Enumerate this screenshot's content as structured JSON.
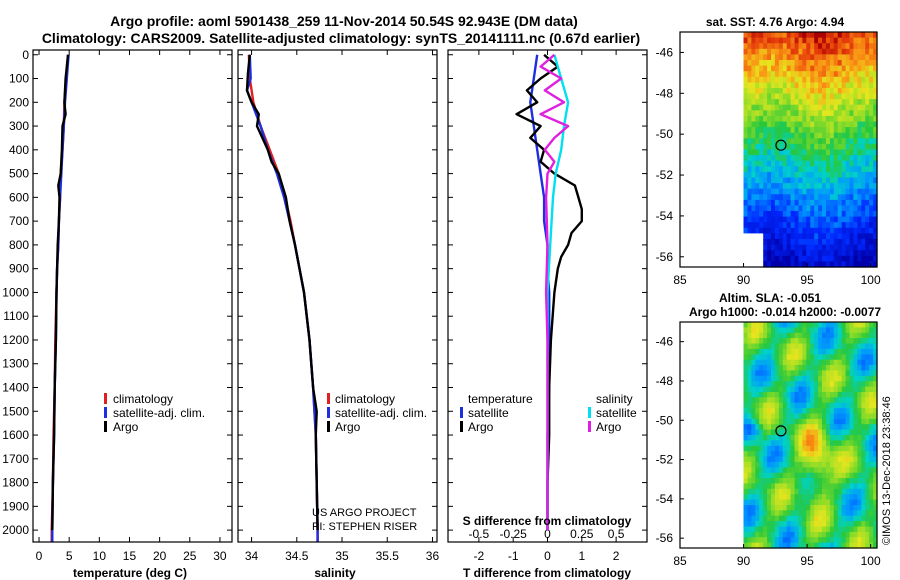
{
  "title_line1": "Argo profile: aoml 5901438_259 11-Nov-2014 50.54S 92.943E (DM data)",
  "title_line2": "Climatology: CARS2009. Satellite-adjusted climatology: synTS_20141111.nc (0.67d earlier)",
  "depth_ticks": [
    "0",
    "100",
    "200",
    "300",
    "400",
    "500",
    "600",
    "700",
    "800",
    "900",
    "1000",
    "1100",
    "1200",
    "1300",
    "1400",
    "1500",
    "1600",
    "1700",
    "1800",
    "1900",
    "2000"
  ],
  "colors": {
    "climatology": "#e02020",
    "satellite": "#1c2ee0",
    "argo": "#000000",
    "satellite_s": "#00e0f0",
    "argo_s": "#e020e0"
  },
  "chart_data": [
    {
      "type": "line",
      "name": "temperature-panel",
      "xlabel": "temperature (deg C)",
      "xlim": [
        -1,
        32
      ],
      "ylim": [
        2050,
        -20
      ],
      "xticks": [
        "0",
        "5",
        "10",
        "15",
        "20",
        "25",
        "30"
      ],
      "legend": [
        "climatology",
        "satellite-adj. clim.",
        "Argo"
      ],
      "series": [
        {
          "name": "climatology",
          "depth": [
            0,
            100,
            200,
            300,
            400,
            500,
            600,
            700,
            800,
            900,
            1000,
            1200,
            1400,
            1600,
            1800,
            2000,
            2050
          ],
          "values": [
            4.8,
            4.5,
            4.2,
            4.1,
            3.9,
            3.6,
            3.5,
            3.3,
            3.2,
            3.0,
            2.9,
            2.7,
            2.6,
            2.4,
            2.3,
            2.1,
            2.1
          ]
        },
        {
          "name": "satellite-adj. clim.",
          "depth": [
            0,
            100,
            200,
            300,
            400,
            500,
            600,
            700,
            800,
            900,
            1000,
            1200,
            1400,
            1600,
            1800,
            2000,
            2050
          ],
          "values": [
            4.9,
            4.6,
            4.3,
            4.1,
            3.9,
            3.7,
            3.5,
            3.3,
            3.2,
            3.0,
            2.9,
            2.8,
            2.6,
            2.5,
            2.3,
            2.2,
            2.2
          ]
        },
        {
          "name": "Argo",
          "depth": [
            0,
            50,
            100,
            200,
            250,
            300,
            400,
            500,
            550,
            600,
            700,
            800,
            900,
            1000,
            1200,
            1400,
            1600,
            1800,
            2000
          ],
          "values": [
            4.8,
            4.6,
            4.4,
            4.2,
            4.4,
            3.9,
            3.8,
            3.6,
            3.2,
            3.4,
            3.3,
            3.1,
            3.0,
            2.9,
            2.8,
            2.6,
            2.5,
            2.3,
            2.2
          ]
        }
      ],
      "annotations": []
    },
    {
      "type": "line",
      "name": "salinity-panel",
      "xlabel": "salinity",
      "xlim": [
        33.85,
        36.05
      ],
      "ylim": [
        2050,
        -20
      ],
      "xticks": [
        "34",
        "34.5",
        "35",
        "35.5",
        "36"
      ],
      "legend": [
        "climatology",
        "satellite-adj. clim.",
        "Argo"
      ],
      "series": [
        {
          "name": "climatology",
          "depth": [
            0,
            100,
            200,
            300,
            400,
            500,
            600,
            700,
            800,
            900,
            1000,
            1200,
            1400,
            1600,
            1800,
            2000,
            2050
          ],
          "values": [
            33.97,
            33.98,
            34.02,
            34.1,
            34.2,
            34.3,
            34.37,
            34.43,
            34.48,
            34.53,
            34.58,
            34.64,
            34.68,
            34.71,
            34.72,
            34.73,
            34.73
          ]
        },
        {
          "name": "satellite-adj. clim.",
          "depth": [
            0,
            100,
            150,
            200,
            300,
            400,
            500,
            600,
            700,
            800,
            900,
            1000,
            1200,
            1400,
            1600,
            1800,
            2000,
            2050
          ],
          "values": [
            33.98,
            33.99,
            33.95,
            34.0,
            34.1,
            34.18,
            34.28,
            34.36,
            34.42,
            34.48,
            34.53,
            34.58,
            34.64,
            34.68,
            34.71,
            34.72,
            34.73,
            34.73
          ]
        },
        {
          "name": "Argo",
          "depth": [
            0,
            80,
            150,
            200,
            250,
            300,
            350,
            400,
            450,
            500,
            600,
            700,
            800,
            900,
            1000,
            1200,
            1400,
            1500,
            1600,
            1800,
            2000
          ],
          "values": [
            33.98,
            33.96,
            33.95,
            34.0,
            34.08,
            34.06,
            34.12,
            34.18,
            34.22,
            34.3,
            34.38,
            34.42,
            34.48,
            34.53,
            34.58,
            34.64,
            34.68,
            34.72,
            34.71,
            34.72,
            34.73
          ]
        }
      ],
      "annotations": [
        "US ARGO PROJECT",
        "PI: STEPHEN RISER"
      ]
    },
    {
      "type": "line",
      "name": "difference-panel",
      "xlabel": "T difference from climatology",
      "xlabel_top": "S difference from climatology",
      "xlim": [
        -2.9,
        2.9
      ],
      "ylim": [
        2050,
        -20
      ],
      "xticks": [
        "-2",
        "-1",
        "0",
        "1",
        "2"
      ],
      "xticks_s": [
        "-0.5",
        "-0.25",
        "0",
        "0.25",
        "0.5"
      ],
      "legend_titles": [
        "temperature",
        "salinity"
      ],
      "legend": [
        "satellite",
        "Argo",
        "satellite",
        "Argo"
      ],
      "series": [
        {
          "name": "temperature satellite",
          "depth": [
            0,
            100,
            200,
            300,
            400,
            500,
            600,
            700,
            800,
            900,
            1000,
            1200,
            1400,
            1600,
            1800,
            2000
          ],
          "values": [
            -0.3,
            -0.4,
            -0.5,
            -0.4,
            -0.3,
            -0.2,
            -0.1,
            -0.1,
            0.0,
            0.0,
            0.05,
            0.05,
            0.05,
            0.0,
            0.0,
            0.0
          ]
        },
        {
          "name": "temperature Argo",
          "depth": [
            0,
            50,
            100,
            150,
            200,
            250,
            300,
            350,
            400,
            450,
            500,
            550,
            600,
            650,
            700,
            750,
            800,
            850,
            900,
            1000,
            1200,
            1400,
            1600,
            1800,
            2000
          ],
          "values": [
            -0.1,
            0.3,
            -0.2,
            -0.6,
            -0.3,
            -0.9,
            -0.2,
            -0.5,
            -0.1,
            -0.2,
            0.2,
            0.8,
            0.9,
            1.0,
            1.0,
            0.7,
            0.6,
            0.4,
            0.3,
            0.2,
            0.1,
            0.05,
            0.05,
            0.0,
            0.0
          ]
        },
        {
          "name": "salinity satellite",
          "depth": [
            0,
            100,
            200,
            300,
            400,
            500,
            600,
            800,
            1000,
            1200,
            1400,
            1600,
            1800,
            2000
          ],
          "values": [
            0.05,
            0.1,
            0.15,
            0.12,
            0.1,
            0.06,
            0.04,
            0.02,
            0.0,
            0.0,
            0.0,
            0.0,
            0.0,
            0.0
          ]
        },
        {
          "name": "salinity Argo",
          "depth": [
            0,
            50,
            100,
            150,
            200,
            250,
            300,
            350,
            400,
            450,
            500,
            600,
            800,
            1000,
            1200,
            1400,
            1600,
            1800,
            2000
          ],
          "values": [
            0.05,
            -0.05,
            0.1,
            -0.02,
            0.12,
            -0.05,
            0.15,
            0.05,
            -0.02,
            0.05,
            0.0,
            -0.01,
            0.0,
            -0.01,
            0.0,
            0.0,
            0.0,
            0.0,
            0.0
          ]
        }
      ],
      "annotations": []
    },
    {
      "type": "heatmap",
      "name": "sst-map",
      "title": "sat. SST: 4.76 Argo: 4.94",
      "xlim": [
        85,
        100.5
      ],
      "ylim": [
        -56.5,
        -45
      ],
      "xticks": [
        "85",
        "90",
        "95",
        "100"
      ],
      "yticks": [
        "-46",
        "-48",
        "-50",
        "-52",
        "-54",
        "-56"
      ],
      "marker": {
        "lon": 92.943,
        "lat": -50.54
      }
    },
    {
      "type": "heatmap",
      "name": "sla-map",
      "title": "Altim. SLA: -0.051",
      "subtitle": "Argo h1000: -0.014 h2000: -0.0077",
      "xlim": [
        85,
        100.5
      ],
      "ylim": [
        -56.5,
        -45
      ],
      "xticks": [
        "85",
        "90",
        "95",
        "100"
      ],
      "yticks": [
        "-46",
        "-48",
        "-50",
        "-52",
        "-54",
        "-56"
      ],
      "marker": {
        "lon": 92.943,
        "lat": -50.54
      }
    }
  ],
  "imos_stamp": "©IMOS 13-Dec-2018 23:38:46"
}
